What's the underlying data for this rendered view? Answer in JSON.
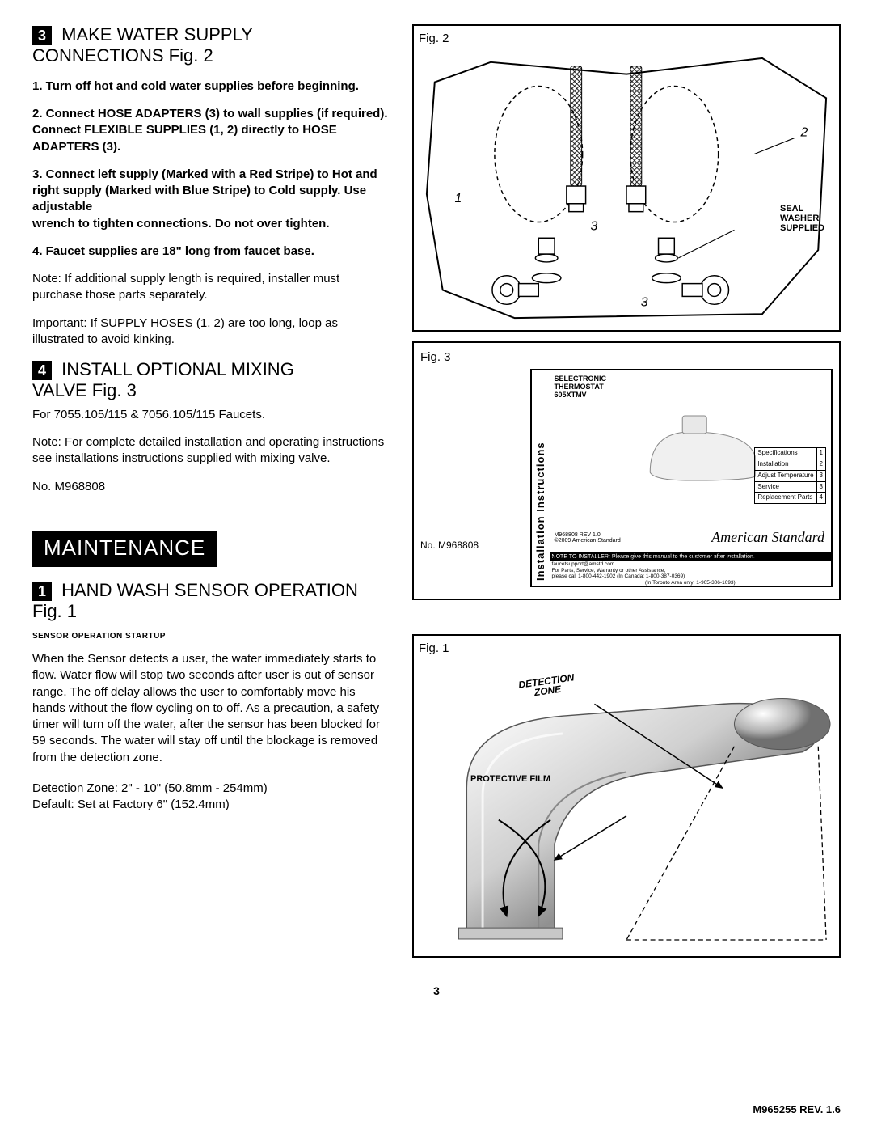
{
  "section3": {
    "num": "3",
    "title_line1": "MAKE WATER SUPPLY",
    "title_line2": "CONNECTIONS Fig. 2",
    "step1": "1. Turn off hot and cold water supplies before beginning.",
    "step2": "2. Connect HOSE ADAPTERS (3) to wall supplies (if required). Connect FLEXIBLE SUPPLIES (1, 2) directly to HOSE ADAPTERS (3).",
    "step3": "3.  Connect left supply (Marked with a Red Stripe) to Hot and right supply (Marked with Blue Stripe) to Cold supply. Use adjustable",
    "step3b": "wrench to tighten connections. Do not over tighten.",
    "step4": "4. Faucet supplies are 18\" long from faucet base.",
    "note1": "Note: If additional supply length is required, installer must purchase those parts separately.",
    "note2": "Important: If SUPPLY HOSES (1, 2) are too long, loop as illustrated to avoid kinking."
  },
  "section4": {
    "num": "4",
    "title_line1": "INSTALL OPTIONAL MIXING",
    "title_line2": "VALVE Fig. 3",
    "sub1": "For 7055.105/115 & 7056.105/115 Faucets.",
    "note": "Note: For complete detailed installation and operating instructions see installations instructions supplied with mixing valve.",
    "partno": "No. M968808"
  },
  "maintenance": {
    "header": "MAINTENANCE",
    "num": "1",
    "title": "HAND WASH SENSOR OPERATION",
    "title2": "Fig. 1",
    "tiny": "SENSOR OPERATION STARTUP",
    "body": "When the Sensor detects a user, the water immediately starts to flow. Water flow will stop two seconds after user is out of sensor range. The off delay allows the user to comfortably move his hands without the flow cycling on to off. As a precaution, a safety timer will turn off the water, after the sensor has been blocked for 59 seconds. The water will stay off until the blockage is removed from the detection zone.",
    "zone": "Detection Zone: 2\" - 10\" (50.8mm - 254mm)",
    "default": "Default: Set at Factory 6\" (152.4mm)"
  },
  "fig2": {
    "label": "Fig. 2",
    "callout_seal": "SEAL",
    "callout_washer": "WASHER",
    "callout_supplied": "SUPPLIED",
    "marker1": "1",
    "marker2": "2",
    "marker3a": "3",
    "marker3b": "3"
  },
  "fig3": {
    "label": "Fig. 3",
    "inner_label": "No. M968808",
    "vert": "Installation Instructions",
    "brand_top1": "SELECTRONIC",
    "brand_top2": "THERMOSTAT",
    "brand_top3": "605XTMV",
    "table_rows": [
      [
        "Specifications",
        "1"
      ],
      [
        "Installation",
        "2"
      ],
      [
        "Adjust Temperature",
        "3"
      ],
      [
        "Service",
        "3"
      ],
      [
        "Replacement Parts",
        "4"
      ]
    ],
    "brand_script": "American Standard",
    "footer_note": "NOTE TO INSTALLER: Please give this manual to the customer after installation.",
    "footer_text": "To learn more about American Standard Faucets visit our website at www.amstd.com or U.S. customers e-mail us at: faucetsupport@amstd.com",
    "footer_text2": "For Parts, Service, Warranty or other Assistance,",
    "footer_phone": "please call   1-800-442-1902 (In Canada: 1-800-387-0369)",
    "footer_phone2": "(In Toronto Area only: 1-905-306-1093)"
  },
  "fig1": {
    "label": "Fig. 1",
    "detection": "DETECTION",
    "zone": "ZONE",
    "film": "PROTECTIVE FILM"
  },
  "footer": {
    "page": "3",
    "rev": "M965255 REV. 1.6"
  }
}
